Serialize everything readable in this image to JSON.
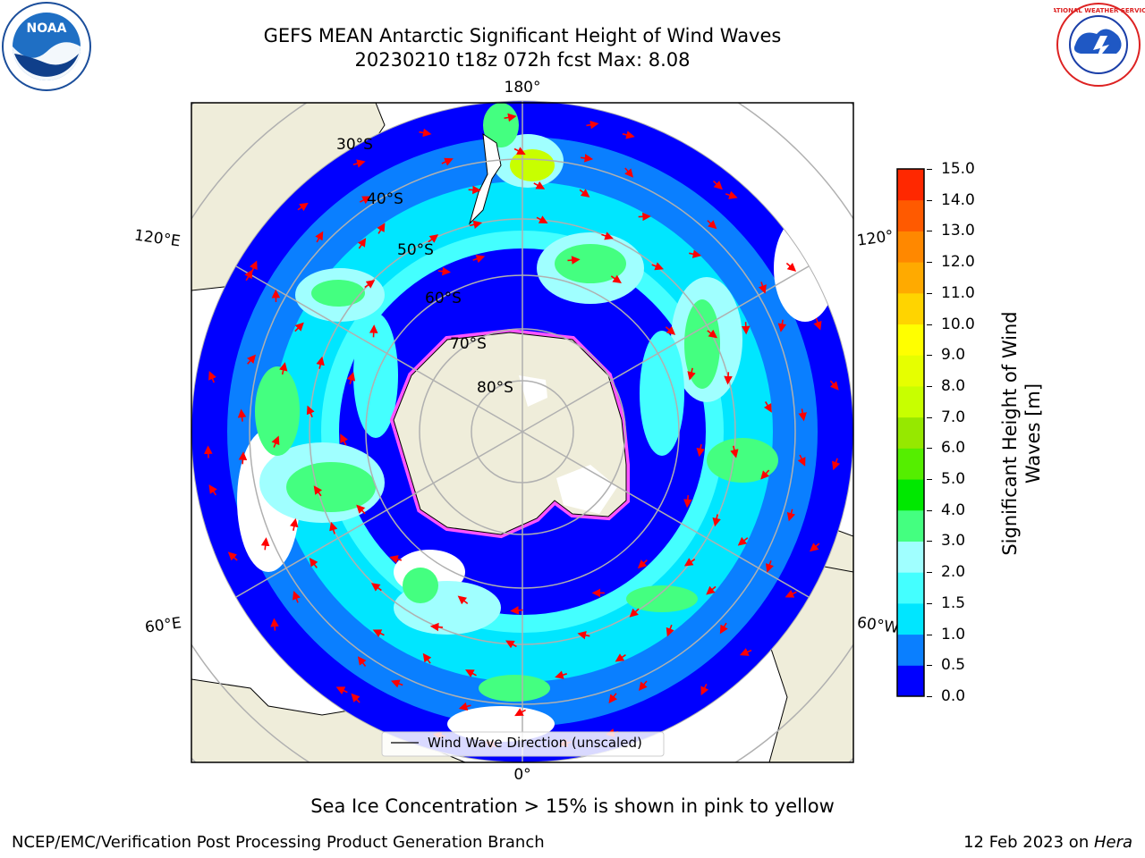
{
  "title": {
    "line1": "GEFS MEAN Antarctic Significant Height of Wind Waves",
    "line2": "20230210 t18z 072h fcst   Max: 8.08"
  },
  "logos": {
    "noaa_text": "NOAA",
    "nws_text": "NATIONAL WEATHER SERVICE"
  },
  "map": {
    "projection": "south-polar-stereographic",
    "lon_labels": {
      "top": "180°",
      "bottom": "0°",
      "left_upper": "120°E",
      "left_lower": "60°E",
      "right_upper": "120°",
      "right_lower": "60°W"
    },
    "lat_labels": [
      "30°S",
      "40°S",
      "50°S",
      "60°S",
      "70°S",
      "80°S"
    ],
    "legend_label": "Wind Wave Direction (unscaled)",
    "land_color": "#efedda",
    "arrow_color": "#ff0000"
  },
  "colorbar": {
    "label_line1": "Significant Height of Wind",
    "label_line2": "Waves [m]",
    "ticks": [
      "15.0",
      "14.0",
      "13.0",
      "12.0",
      "11.0",
      "10.0",
      "9.0",
      "8.0",
      "7.0",
      "6.0",
      "5.0",
      "4.0",
      "3.0",
      "2.0",
      "1.5",
      "1.0",
      "0.5",
      "0.0"
    ],
    "colors_bottom_to_top": [
      "#0000ff",
      "#0a7fff",
      "#00e6ff",
      "#44ffff",
      "#a0ffff",
      "#44ff80",
      "#00e800",
      "#55ee00",
      "#96e800",
      "#c8ff00",
      "#e6ff00",
      "#ffff00",
      "#ffd400",
      "#ffaa00",
      "#ff8800",
      "#ff5a00",
      "#ff2800"
    ]
  },
  "caption": "Sea Ice Concentration > 15% is shown in pink to yellow",
  "footer": {
    "left": "NCEP/EMC/Verification Post Processing Product Generation Branch",
    "right_date": "12 Feb 2023 on ",
    "right_machine": "Hera"
  }
}
